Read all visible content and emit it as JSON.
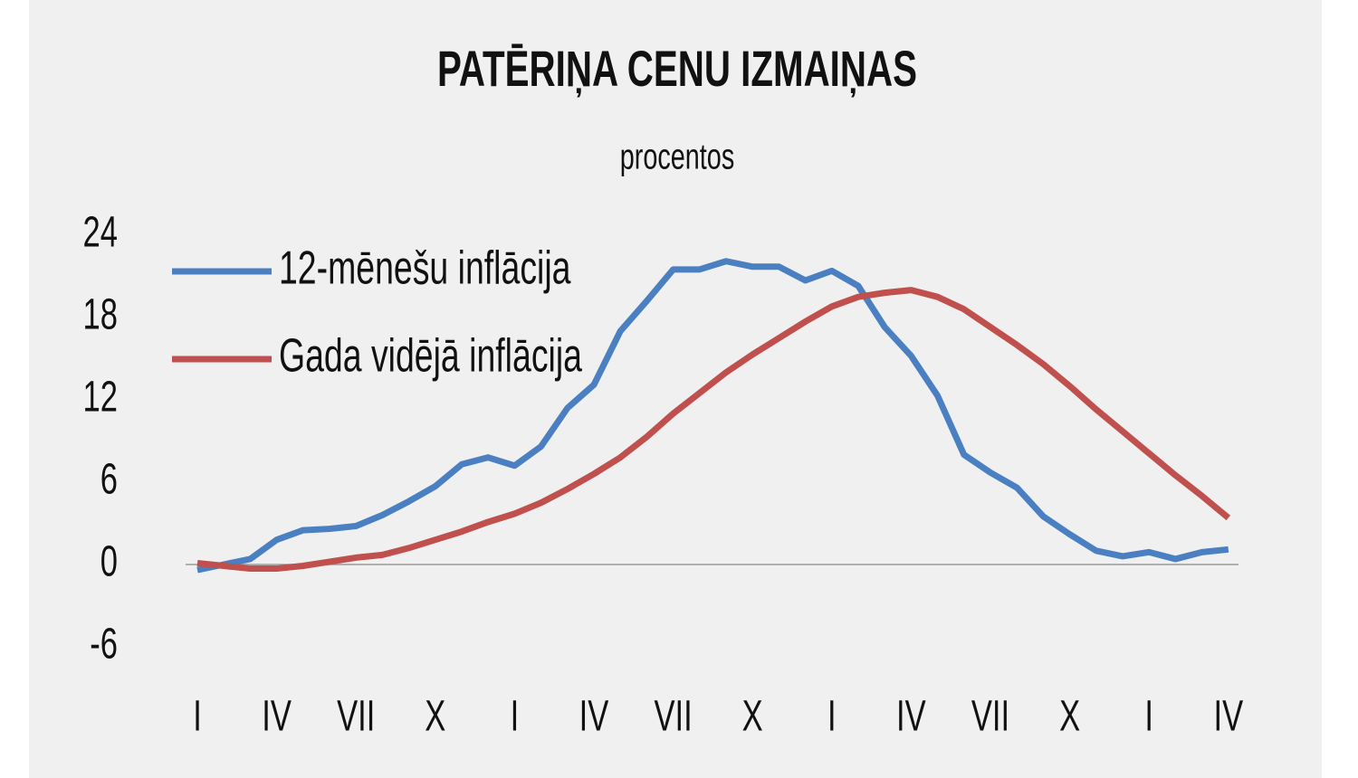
{
  "chart_data": {
    "type": "line",
    "title": "PATĒRIŅA CENU IZMAIŅAS",
    "subtitle": "procentos",
    "categories": [
      "I",
      null,
      null,
      "IV",
      null,
      null,
      "VII",
      null,
      null,
      "X",
      null,
      null,
      "I",
      null,
      null,
      "IV",
      null,
      null,
      "VII",
      null,
      null,
      "X",
      null,
      null,
      "I",
      null,
      null,
      "IV",
      null,
      null,
      "VII",
      null,
      null,
      "X",
      null,
      null,
      "I",
      null,
      null,
      "IV"
    ],
    "series": [
      {
        "name": "12-mēnešu inflācija",
        "color": "#4a7fc1",
        "values": [
          -0.4,
          0.0,
          0.4,
          1.8,
          2.5,
          2.6,
          2.8,
          3.6,
          4.6,
          5.7,
          7.3,
          7.8,
          7.2,
          8.6,
          11.4,
          13.1,
          17.0,
          19.2,
          21.5,
          21.5,
          22.1,
          21.7,
          21.7,
          20.7,
          21.4,
          20.3,
          17.3,
          15.2,
          12.3,
          8.0,
          6.7,
          5.6,
          3.5,
          2.2,
          1.0,
          0.6,
          0.9,
          0.4,
          0.9,
          1.1
        ]
      },
      {
        "name": "Gada vidējā inflācija",
        "color": "#c0504d",
        "values": [
          0.1,
          -0.1,
          -0.3,
          -0.3,
          -0.1,
          0.2,
          0.5,
          0.7,
          1.2,
          1.8,
          2.4,
          3.1,
          3.7,
          4.5,
          5.5,
          6.6,
          7.8,
          9.3,
          11.0,
          12.5,
          14.0,
          15.3,
          16.5,
          17.7,
          18.8,
          19.5,
          19.8,
          20.0,
          19.5,
          18.6,
          17.3,
          16.0,
          14.6,
          13.0,
          11.3,
          9.7,
          8.1,
          6.5,
          5.0,
          3.4
        ]
      }
    ],
    "ylim": [
      -6,
      24
    ],
    "yticks": [
      -6,
      0,
      6,
      12,
      18,
      24
    ],
    "legend": "upper-left",
    "zero_line": true
  }
}
